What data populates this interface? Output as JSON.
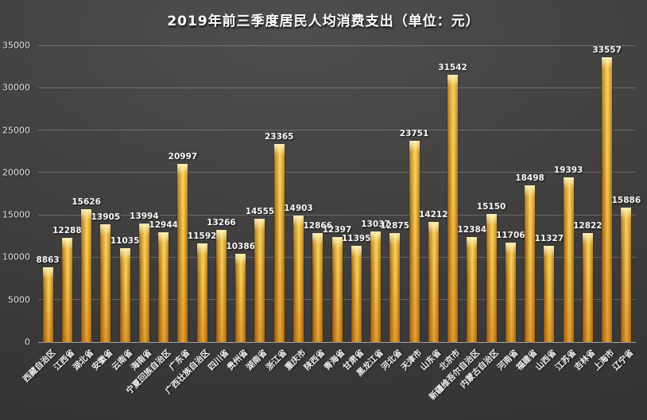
{
  "chart_data": {
    "type": "bar",
    "title": "2019年前三季度居民人均消费支出（单位：元）",
    "unit": "元",
    "categories": [
      "西藏自治区",
      "江西省",
      "湖北省",
      "安徽省",
      "云南省",
      "海南省",
      "宁夏回族自治区",
      "广东省",
      "广西壮族自治区",
      "四川省",
      "贵州省",
      "湖南省",
      "浙江省",
      "重庆市",
      "陕西省",
      "青海省",
      "甘肃省",
      "黑龙江省",
      "河北省",
      "天津市",
      "山东省",
      "北京市",
      "新疆维吾尔自治区",
      "内蒙古自治区",
      "河南省",
      "福建省",
      "山西省",
      "江苏省",
      "吉林省",
      "上海市",
      "辽宁省"
    ],
    "values": [
      8863,
      12288,
      15626,
      13905,
      11035,
      13994,
      12944,
      20997,
      11592,
      13266,
      10386,
      14555,
      23365,
      14903,
      12866,
      12397,
      11395,
      13037,
      12875,
      23751,
      14212,
      31542,
      12384,
      15150,
      11706,
      18498,
      11327,
      19393,
      12822,
      33557,
      15886
    ],
    "xlabel": "",
    "ylabel": "",
    "ylim": [
      0,
      35000
    ],
    "yticks": [
      0,
      5000,
      10000,
      15000,
      20000,
      25000,
      30000,
      35000
    ],
    "grid": "horizontal",
    "legend": "none",
    "data_labels": true,
    "x_label_rotation_deg": -45
  },
  "colors": {
    "background_center": "#504e4c",
    "background_mid": "#403e3d",
    "background_edge": "#343332",
    "bar_edge_dark": "#6e4410",
    "bar_dark": "#a8701a",
    "bar_gold": "#e2ae38",
    "bar_light": "#f5cd60",
    "gridline": "rgba(255,255,255,0.22)",
    "axis_line": "rgba(255,255,255,0.55)",
    "text": "#f2f2f2"
  }
}
